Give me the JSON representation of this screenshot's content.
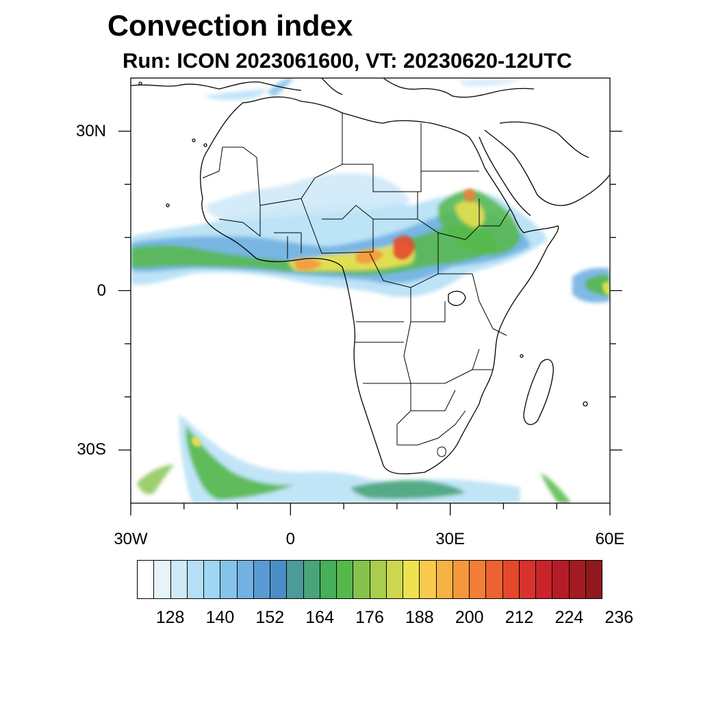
{
  "figure": {
    "title": "Convection index",
    "subtitle": "Run: ICON 2023061600,  VT: 20230620-12UTC"
  },
  "map": {
    "lon_range": [
      -30,
      60
    ],
    "lat_range": [
      -40,
      40
    ],
    "x_ticks": [
      {
        "lon": -30,
        "label": "30W"
      },
      {
        "lon": 0,
        "label": "0"
      },
      {
        "lon": 30,
        "label": "30E"
      },
      {
        "lon": 60,
        "label": "60E"
      }
    ],
    "y_ticks": [
      {
        "lat": 30,
        "label": "30N"
      },
      {
        "lat": 0,
        "label": "0"
      },
      {
        "lat": -30,
        "label": "30S"
      }
    ]
  },
  "colorbar": {
    "colors": [
      "#ffffff",
      "#e7f4fc",
      "#cfe9f8",
      "#b6e0f6",
      "#9fd6f3",
      "#86c3ea",
      "#72b1e2",
      "#5a9bd3",
      "#4a8ec5",
      "#4c9a9a",
      "#48a57a",
      "#47ae5a",
      "#56b84a",
      "#86c24c",
      "#a8cd4f",
      "#cdd84f",
      "#efe251",
      "#f8cb4e",
      "#f7b245",
      "#f6973e",
      "#f37e37",
      "#ec6230",
      "#e4482d",
      "#d8322d",
      "#c9242c",
      "#b51d26",
      "#a31a22",
      "#8e1a1e"
    ],
    "labels": [
      "128",
      "140",
      "152",
      "164",
      "176",
      "188",
      "200",
      "212",
      "224",
      "236"
    ],
    "label_start_index": 2,
    "label_step": 3
  },
  "field": {
    "units": "",
    "description_colors": {
      "light": "#9fd6f3",
      "medium": "#5a9bd3",
      "green": "#56b84a",
      "yellow": "#efe251",
      "orange": "#f6973e",
      "red": "#d8322d"
    }
  }
}
